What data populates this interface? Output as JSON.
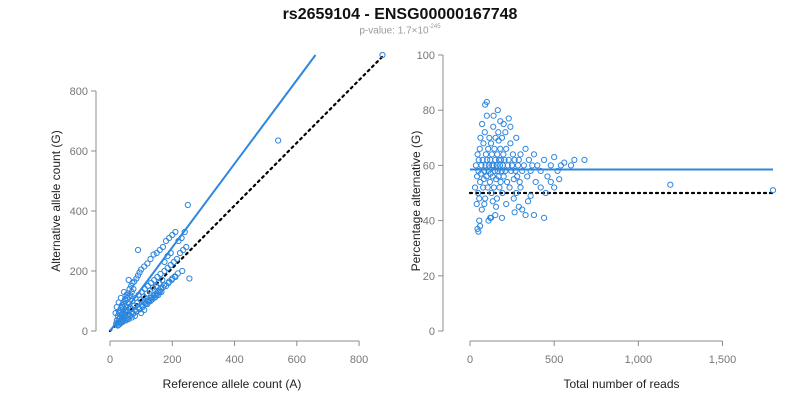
{
  "title": "rs2659104 - ENSG00000167748",
  "subtitle": {
    "prefix": "p-value: 1.7×10",
    "exponent": "-245"
  },
  "colors": {
    "accent": "#2e86de",
    "axis": "#8c8c8c",
    "text": "#222222",
    "reference": "#000000"
  },
  "chart_data": [
    {
      "type": "scatter",
      "xlabel": "Reference allele count (A)",
      "ylabel": "Alternative allele count (G)",
      "xlim": [
        0,
        880
      ],
      "ylim": [
        0,
        920
      ],
      "xticks": [
        0,
        200,
        400,
        600,
        800
      ],
      "yticks": [
        0,
        200,
        400,
        600,
        800
      ],
      "xtick_labels": [
        "0",
        "200",
        "400",
        "600",
        "800"
      ],
      "ytick_labels": [
        "0",
        "200",
        "400",
        "600",
        "800"
      ],
      "fit_line": {
        "x": [
          0,
          660
        ],
        "y": [
          0,
          920
        ]
      },
      "reference_line": {
        "x": [
          0,
          880
        ],
        "y": [
          0,
          920
        ]
      },
      "points": [
        [
          20,
          25
        ],
        [
          22,
          35
        ],
        [
          25,
          18
        ],
        [
          28,
          40
        ],
        [
          30,
          30
        ],
        [
          32,
          45
        ],
        [
          35,
          28
        ],
        [
          38,
          55
        ],
        [
          40,
          35
        ],
        [
          42,
          60
        ],
        [
          45,
          42
        ],
        [
          48,
          70
        ],
        [
          50,
          48
        ],
        [
          52,
          65
        ],
        [
          55,
          38
        ],
        [
          58,
          80
        ],
        [
          60,
          55
        ],
        [
          62,
          90
        ],
        [
          65,
          50
        ],
        [
          68,
          75
        ],
        [
          70,
          60
        ],
        [
          72,
          100
        ],
        [
          75,
          58
        ],
        [
          78,
          85
        ],
        [
          80,
          70
        ],
        [
          82,
          110
        ],
        [
          85,
          65
        ],
        [
          88,
          95
        ],
        [
          90,
          78
        ],
        [
          92,
          120
        ],
        [
          95,
          72
        ],
        [
          98,
          105
        ],
        [
          100,
          88
        ],
        [
          102,
          130
        ],
        [
          105,
          80
        ],
        [
          108,
          115
        ],
        [
          110,
          95
        ],
        [
          112,
          140
        ],
        [
          115,
          90
        ],
        [
          118,
          125
        ],
        [
          120,
          100
        ],
        [
          122,
          150
        ],
        [
          125,
          98
        ],
        [
          128,
          135
        ],
        [
          130,
          110
        ],
        [
          132,
          160
        ],
        [
          135,
          105
        ],
        [
          138,
          145
        ],
        [
          140,
          118
        ],
        [
          142,
          170
        ],
        [
          145,
          112
        ],
        [
          148,
          150
        ],
        [
          150,
          125
        ],
        [
          152,
          180
        ],
        [
          155,
          120
        ],
        [
          158,
          160
        ],
        [
          160,
          135
        ],
        [
          162,
          190
        ],
        [
          165,
          130
        ],
        [
          168,
          170
        ],
        [
          170,
          145
        ],
        [
          175,
          200
        ],
        [
          180,
          150
        ],
        [
          185,
          210
        ],
        [
          190,
          165
        ],
        [
          195,
          220
        ],
        [
          200,
          175
        ],
        [
          205,
          230
        ],
        [
          210,
          180
        ],
        [
          215,
          240
        ],
        [
          30,
          60
        ],
        [
          35,
          75
        ],
        [
          40,
          80
        ],
        [
          45,
          90
        ],
        [
          50,
          100
        ],
        [
          55,
          110
        ],
        [
          60,
          115
        ],
        [
          65,
          120
        ],
        [
          70,
          130
        ],
        [
          75,
          140
        ],
        [
          25,
          50
        ],
        [
          28,
          65
        ],
        [
          33,
          70
        ],
        [
          38,
          85
        ],
        [
          43,
          95
        ],
        [
          48,
          105
        ],
        [
          53,
          120
        ],
        [
          58,
          125
        ],
        [
          63,
          140
        ],
        [
          68,
          150
        ],
        [
          72,
          160
        ],
        [
          78,
          165
        ],
        [
          85,
          175
        ],
        [
          90,
          185
        ],
        [
          95,
          195
        ],
        [
          100,
          205
        ],
        [
          110,
          215
        ],
        [
          120,
          225
        ],
        [
          130,
          240
        ],
        [
          140,
          255
        ],
        [
          150,
          260
        ],
        [
          160,
          270
        ],
        [
          170,
          280
        ],
        [
          180,
          300
        ],
        [
          190,
          310
        ],
        [
          200,
          320
        ],
        [
          210,
          330
        ],
        [
          220,
          300
        ],
        [
          230,
          310
        ],
        [
          240,
          330
        ],
        [
          250,
          420
        ],
        [
          245,
          280
        ],
        [
          255,
          175
        ],
        [
          90,
          270
        ],
        [
          60,
          170
        ],
        [
          45,
          130
        ],
        [
          35,
          110
        ],
        [
          28,
          95
        ],
        [
          22,
          80
        ],
        [
          18,
          60
        ],
        [
          100,
          60
        ],
        [
          110,
          70
        ],
        [
          120,
          90
        ],
        [
          130,
          100
        ],
        [
          140,
          110
        ],
        [
          150,
          120
        ],
        [
          160,
          130
        ],
        [
          80,
          50
        ],
        [
          70,
          45
        ],
        [
          60,
          40
        ],
        [
          50,
          35
        ],
        [
          40,
          30
        ],
        [
          30,
          22
        ],
        [
          26,
          20
        ],
        [
          24,
          28
        ],
        [
          34,
          26
        ],
        [
          44,
          38
        ],
        [
          54,
          44
        ],
        [
          64,
          52
        ],
        [
          74,
          58
        ],
        [
          84,
          66
        ],
        [
          94,
          74
        ],
        [
          104,
          84
        ],
        [
          114,
          92
        ],
        [
          124,
          102
        ],
        [
          134,
          112
        ],
        [
          144,
          122
        ],
        [
          154,
          132
        ],
        [
          164,
          142
        ],
        [
          174,
          152
        ],
        [
          188,
          160
        ],
        [
          198,
          170
        ],
        [
          208,
          182
        ],
        [
          218,
          192
        ],
        [
          232,
          200
        ],
        [
          225,
          260
        ],
        [
          235,
          270
        ],
        [
          175,
          230
        ],
        [
          185,
          250
        ],
        [
          195,
          260
        ],
        [
          540,
          635
        ],
        [
          875,
          920
        ]
      ]
    },
    {
      "type": "scatter",
      "xlabel": "Total number of reads",
      "ylabel": "Percentage alternative (G)",
      "xlim": [
        0,
        1800
      ],
      "ylim": [
        0,
        100
      ],
      "xticks": [
        0,
        500,
        1000,
        1500
      ],
      "yticks": [
        0,
        20,
        40,
        60,
        80,
        100
      ],
      "xtick_labels": [
        "0",
        "500",
        "1,000",
        "1,500"
      ],
      "ytick_labels": [
        "0",
        "20",
        "40",
        "60",
        "80",
        "100"
      ],
      "fit_line": {
        "x": [
          0,
          1800
        ],
        "y": [
          58.5,
          58.5
        ]
      },
      "reference_line": {
        "x": [
          0,
          1800
        ],
        "y": [
          50,
          50
        ]
      },
      "points": [
        [
          30,
          52
        ],
        [
          35,
          60
        ],
        [
          40,
          46
        ],
        [
          42,
          56
        ],
        [
          45,
          64
        ],
        [
          48,
          50
        ],
        [
          50,
          58
        ],
        [
          52,
          62
        ],
        [
          55,
          48
        ],
        [
          58,
          66
        ],
        [
          60,
          54
        ],
        [
          62,
          70
        ],
        [
          65,
          57
        ],
        [
          68,
          60
        ],
        [
          70,
          44
        ],
        [
          72,
          75
        ],
        [
          75,
          62
        ],
        [
          78,
          52
        ],
        [
          80,
          68
        ],
        [
          82,
          55
        ],
        [
          85,
          58
        ],
        [
          88,
          72
        ],
        [
          90,
          48
        ],
        [
          92,
          60
        ],
        [
          95,
          64
        ],
        [
          98,
          56
        ],
        [
          100,
          78
        ],
        [
          102,
          62
        ],
        [
          105,
          52
        ],
        [
          108,
          66
        ],
        [
          110,
          58
        ],
        [
          112,
          60
        ],
        [
          115,
          70
        ],
        [
          118,
          54
        ],
        [
          120,
          62
        ],
        [
          122,
          57
        ],
        [
          125,
          68
        ],
        [
          128,
          50
        ],
        [
          130,
          64
        ],
        [
          132,
          60
        ],
        [
          135,
          56
        ],
        [
          138,
          74
        ],
        [
          140,
          60
        ],
        [
          142,
          52
        ],
        [
          145,
          66
        ],
        [
          148,
          58
        ],
        [
          150,
          62
        ],
        [
          152,
          70
        ],
        [
          155,
          55
        ],
        [
          158,
          60
        ],
        [
          160,
          48
        ],
        [
          162,
          64
        ],
        [
          165,
          58
        ],
        [
          168,
          72
        ],
        [
          170,
          56
        ],
        [
          172,
          62
        ],
        [
          175,
          52
        ],
        [
          178,
          60
        ],
        [
          180,
          66
        ],
        [
          182,
          54
        ],
        [
          185,
          62
        ],
        [
          188,
          58
        ],
        [
          190,
          70
        ],
        [
          192,
          50
        ],
        [
          195,
          60
        ],
        [
          198,
          64
        ],
        [
          200,
          56
        ],
        [
          205,
          62
        ],
        [
          210,
          58
        ],
        [
          215,
          66
        ],
        [
          220,
          54
        ],
        [
          225,
          60
        ],
        [
          230,
          62
        ],
        [
          235,
          52
        ],
        [
          240,
          68
        ],
        [
          245,
          58
        ],
        [
          250,
          60
        ],
        [
          255,
          64
        ],
        [
          260,
          55
        ],
        [
          265,
          62
        ],
        [
          270,
          58
        ],
        [
          275,
          70
        ],
        [
          280,
          56
        ],
        [
          285,
          60
        ],
        [
          290,
          62
        ],
        [
          295,
          54
        ],
        [
          300,
          64
        ],
        [
          310,
          58
        ],
        [
          320,
          60
        ],
        [
          330,
          66
        ],
        [
          340,
          56
        ],
        [
          350,
          62
        ],
        [
          360,
          58
        ],
        [
          370,
          60
        ],
        [
          380,
          64
        ],
        [
          390,
          54
        ],
        [
          400,
          60
        ],
        [
          420,
          58
        ],
        [
          440,
          62
        ],
        [
          460,
          56
        ],
        [
          480,
          60
        ],
        [
          500,
          63
        ],
        [
          520,
          58
        ],
        [
          540,
          60
        ],
        [
          560,
          61
        ],
        [
          600,
          60
        ],
        [
          620,
          62
        ],
        [
          680,
          62
        ],
        [
          55,
          40
        ],
        [
          60,
          38
        ],
        [
          50,
          36
        ],
        [
          45,
          37
        ],
        [
          110,
          40
        ],
        [
          120,
          41
        ],
        [
          125,
          41
        ],
        [
          85,
          46
        ],
        [
          135,
          47
        ],
        [
          155,
          45
        ],
        [
          90,
          82
        ],
        [
          100,
          83
        ],
        [
          140,
          78
        ],
        [
          165,
          80
        ],
        [
          180,
          76
        ],
        [
          200,
          75
        ],
        [
          230,
          77
        ],
        [
          240,
          74
        ],
        [
          210,
          72
        ],
        [
          170,
          69
        ],
        [
          250,
          60
        ],
        [
          300,
          52
        ],
        [
          260,
          48
        ],
        [
          275,
          50
        ],
        [
          290,
          45
        ],
        [
          310,
          44
        ],
        [
          330,
          42
        ],
        [
          345,
          47
        ],
        [
          360,
          49
        ],
        [
          380,
          42
        ],
        [
          420,
          52
        ],
        [
          450,
          50
        ],
        [
          480,
          54
        ],
        [
          500,
          52
        ],
        [
          530,
          55
        ],
        [
          440,
          41
        ],
        [
          190,
          41
        ],
        [
          215,
          46
        ],
        [
          265,
          43
        ],
        [
          150,
          42
        ],
        [
          1190,
          53
        ],
        [
          1800,
          51
        ]
      ]
    }
  ]
}
